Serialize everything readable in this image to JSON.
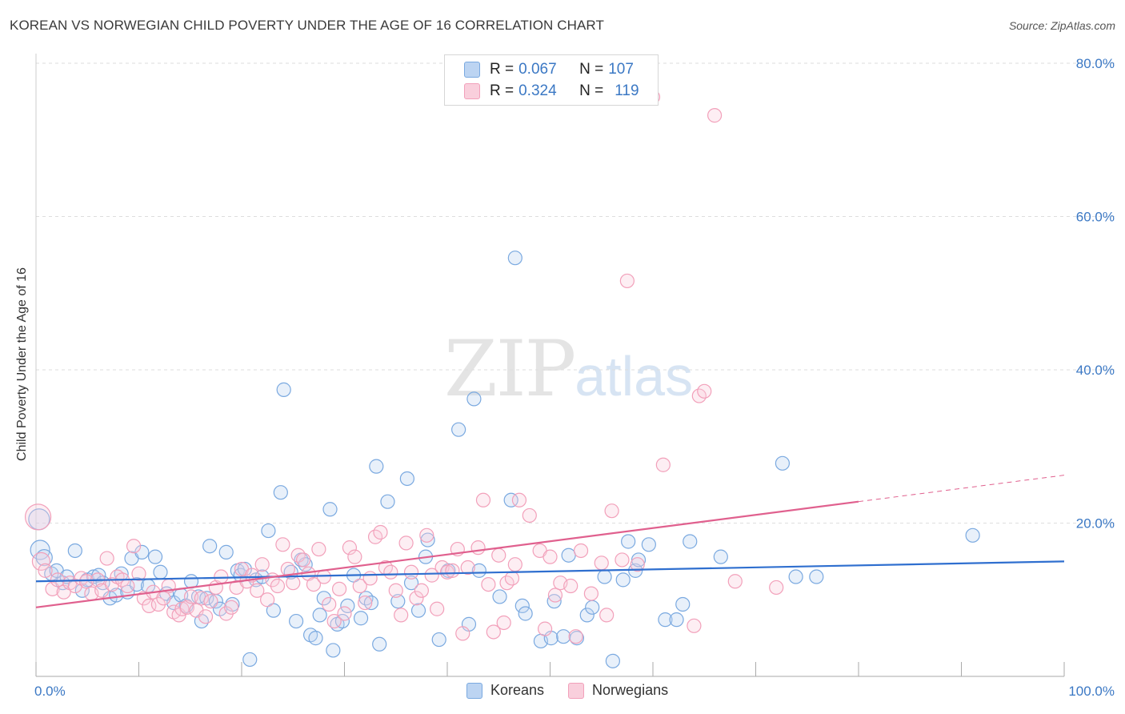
{
  "title": "KOREAN VS NORWEGIAN CHILD POVERTY UNDER THE AGE OF 16 CORRELATION CHART",
  "source": "Source: ZipAtlas.com",
  "watermark": {
    "zip": "ZIP",
    "atlas": "atlas"
  },
  "legend": {
    "r_label": "R = ",
    "n_label": "N = ",
    "koreans": {
      "r": "0.067",
      "n": "107"
    },
    "norwegians": {
      "r": "0.324",
      "n": "119"
    }
  },
  "bottom_legend": {
    "koreans": "Koreans",
    "norwegians": "Norwegians"
  },
  "chart_data": {
    "type": "scatter",
    "title": "KOREAN VS NORWEGIAN CHILD POVERTY UNDER THE AGE OF 16 CORRELATION CHART",
    "xlabel": "",
    "ylabel": "Child Poverty Under the Age of 16",
    "xlim": [
      0,
      100
    ],
    "ylim": [
      0,
      80
    ],
    "x_tick_labels": [
      "0.0%",
      "100.0%"
    ],
    "y_ticks": [
      20,
      40,
      60,
      80
    ],
    "y_tick_labels": [
      "20.0%",
      "40.0%",
      "60.0%",
      "80.0%"
    ],
    "grid": true,
    "colors": {
      "koreans": "#7aa9e0",
      "koreans_line": "#2f6fcf",
      "norwegians": "#f2a0ba",
      "norwegians_line": "#e0608e"
    },
    "series": [
      {
        "name": "Koreans",
        "trend": {
          "x": [
            0,
            100
          ],
          "y": [
            12.4,
            15.0
          ]
        },
        "points": [
          [
            0.3,
            20.5
          ],
          [
            0.4,
            16.5
          ],
          [
            0.8,
            15.5
          ],
          [
            1.5,
            13.4
          ],
          [
            2.0,
            13.8
          ],
          [
            2.6,
            12.2
          ],
          [
            3.0,
            13.0
          ],
          [
            3.8,
            16.4
          ],
          [
            4.5,
            11.2
          ],
          [
            5.0,
            12.6
          ],
          [
            5.6,
            13.0
          ],
          [
            6.1,
            13.2
          ],
          [
            6.5,
            12.2
          ],
          [
            7.2,
            10.2
          ],
          [
            7.8,
            10.6
          ],
          [
            8.3,
            13.4
          ],
          [
            8.9,
            11.0
          ],
          [
            9.3,
            15.4
          ],
          [
            9.8,
            12.0
          ],
          [
            10.3,
            16.2
          ],
          [
            10.9,
            11.8
          ],
          [
            11.6,
            15.6
          ],
          [
            12.1,
            13.6
          ],
          [
            12.7,
            10.8
          ],
          [
            13.4,
            9.6
          ],
          [
            14.1,
            10.6
          ],
          [
            14.6,
            9.2
          ],
          [
            15.1,
            12.4
          ],
          [
            15.8,
            10.4
          ],
          [
            16.1,
            7.2
          ],
          [
            16.6,
            10.2
          ],
          [
            16.9,
            17.0
          ],
          [
            17.5,
            9.8
          ],
          [
            17.9,
            8.8
          ],
          [
            18.5,
            16.2
          ],
          [
            19.1,
            9.4
          ],
          [
            19.6,
            13.8
          ],
          [
            19.9,
            13.2
          ],
          [
            20.3,
            14.0
          ],
          [
            20.8,
            2.2
          ],
          [
            21.4,
            12.6
          ],
          [
            22.0,
            13.0
          ],
          [
            22.6,
            19.0
          ],
          [
            23.1,
            8.6
          ],
          [
            23.8,
            24.0
          ],
          [
            24.1,
            37.4
          ],
          [
            24.8,
            13.6
          ],
          [
            25.3,
            7.2
          ],
          [
            25.8,
            15.2
          ],
          [
            26.2,
            14.6
          ],
          [
            26.7,
            5.4
          ],
          [
            27.2,
            5.0
          ],
          [
            27.6,
            8.0
          ],
          [
            28.0,
            10.2
          ],
          [
            28.6,
            21.8
          ],
          [
            28.9,
            3.4
          ],
          [
            29.3,
            6.8
          ],
          [
            29.8,
            7.2
          ],
          [
            30.3,
            9.2
          ],
          [
            30.9,
            13.2
          ],
          [
            31.6,
            7.6
          ],
          [
            32.1,
            10.2
          ],
          [
            32.6,
            9.6
          ],
          [
            33.1,
            27.4
          ],
          [
            33.4,
            4.2
          ],
          [
            34.2,
            22.8
          ],
          [
            35.2,
            9.8
          ],
          [
            36.1,
            25.8
          ],
          [
            36.5,
            12.2
          ],
          [
            37.2,
            8.6
          ],
          [
            38.1,
            17.8
          ],
          [
            37.9,
            15.6
          ],
          [
            39.2,
            4.8
          ],
          [
            40.1,
            13.8
          ],
          [
            41.1,
            32.2
          ],
          [
            42.1,
            6.8
          ],
          [
            42.6,
            36.2
          ],
          [
            43.1,
            13.8
          ],
          [
            45.1,
            10.4
          ],
          [
            46.2,
            23.0
          ],
          [
            46.6,
            54.6
          ],
          [
            47.3,
            9.2
          ],
          [
            47.6,
            8.2
          ],
          [
            49.1,
            4.6
          ],
          [
            50.1,
            5.0
          ],
          [
            50.4,
            9.8
          ],
          [
            51.3,
            5.2
          ],
          [
            51.8,
            15.8
          ],
          [
            52.6,
            5.0
          ],
          [
            53.6,
            8.0
          ],
          [
            54.1,
            9.0
          ],
          [
            55.3,
            13.0
          ],
          [
            56.1,
            2.0
          ],
          [
            57.1,
            12.6
          ],
          [
            57.6,
            17.6
          ],
          [
            58.3,
            13.8
          ],
          [
            58.6,
            15.2
          ],
          [
            59.6,
            17.2
          ],
          [
            61.2,
            7.4
          ],
          [
            62.3,
            7.4
          ],
          [
            62.9,
            9.4
          ],
          [
            63.6,
            17.6
          ],
          [
            66.6,
            15.6
          ],
          [
            72.6,
            27.8
          ],
          [
            73.9,
            13.0
          ],
          [
            75.9,
            13.0
          ],
          [
            91.1,
            18.4
          ]
        ]
      },
      {
        "name": "Norwegians",
        "trend": {
          "x": [
            0,
            80
          ],
          "y": [
            9.0,
            22.8
          ]
        },
        "points": [
          [
            0.2,
            20.8
          ],
          [
            0.5,
            15.0
          ],
          [
            0.9,
            13.8
          ],
          [
            1.6,
            11.4
          ],
          [
            2.1,
            12.6
          ],
          [
            2.7,
            11.0
          ],
          [
            3.3,
            12.2
          ],
          [
            3.8,
            11.8
          ],
          [
            4.4,
            12.8
          ],
          [
            4.9,
            12.4
          ],
          [
            5.4,
            10.8
          ],
          [
            6.0,
            12.6
          ],
          [
            6.4,
            11.2
          ],
          [
            6.9,
            15.4
          ],
          [
            7.4,
            12.0
          ],
          [
            7.9,
            13.0
          ],
          [
            8.4,
            12.6
          ],
          [
            8.9,
            11.8
          ],
          [
            9.5,
            17.0
          ],
          [
            10.0,
            13.4
          ],
          [
            10.5,
            10.2
          ],
          [
            11.0,
            9.2
          ],
          [
            11.4,
            11.0
          ],
          [
            11.9,
            9.4
          ],
          [
            12.4,
            10.2
          ],
          [
            12.9,
            11.8
          ],
          [
            13.4,
            8.4
          ],
          [
            13.9,
            8.0
          ],
          [
            14.2,
            8.8
          ],
          [
            14.7,
            9.0
          ],
          [
            15.1,
            10.4
          ],
          [
            15.6,
            8.6
          ],
          [
            16.1,
            10.2
          ],
          [
            16.5,
            7.8
          ],
          [
            17.0,
            9.8
          ],
          [
            17.5,
            11.6
          ],
          [
            18.0,
            13.0
          ],
          [
            18.5,
            8.2
          ],
          [
            19.0,
            9.0
          ],
          [
            19.5,
            11.6
          ],
          [
            20.0,
            14.0
          ],
          [
            20.5,
            12.4
          ],
          [
            21.0,
            13.2
          ],
          [
            21.5,
            11.2
          ],
          [
            22.0,
            14.6
          ],
          [
            22.5,
            10.0
          ],
          [
            23.0,
            12.6
          ],
          [
            23.5,
            11.8
          ],
          [
            24.0,
            17.2
          ],
          [
            24.5,
            14.0
          ],
          [
            25.0,
            12.2
          ],
          [
            25.5,
            15.8
          ],
          [
            26.0,
            15.2
          ],
          [
            26.5,
            13.4
          ],
          [
            27.0,
            12.0
          ],
          [
            27.5,
            16.6
          ],
          [
            28.0,
            13.0
          ],
          [
            28.5,
            9.4
          ],
          [
            29.0,
            7.2
          ],
          [
            29.5,
            11.4
          ],
          [
            30.0,
            8.2
          ],
          [
            30.5,
            16.8
          ],
          [
            31.0,
            15.6
          ],
          [
            31.5,
            11.8
          ],
          [
            32.0,
            9.6
          ],
          [
            32.5,
            12.8
          ],
          [
            33.0,
            18.2
          ],
          [
            33.5,
            18.8
          ],
          [
            34.0,
            14.2
          ],
          [
            34.5,
            13.6
          ],
          [
            35.0,
            11.2
          ],
          [
            35.5,
            8.0
          ],
          [
            36.0,
            17.4
          ],
          [
            36.5,
            13.6
          ],
          [
            37.0,
            10.2
          ],
          [
            37.5,
            11.2
          ],
          [
            38.0,
            18.4
          ],
          [
            38.5,
            13.2
          ],
          [
            39.0,
            8.8
          ],
          [
            39.5,
            14.2
          ],
          [
            40.0,
            13.6
          ],
          [
            40.5,
            13.8
          ],
          [
            41.0,
            16.6
          ],
          [
            41.5,
            5.6
          ],
          [
            42.0,
            14.2
          ],
          [
            43.0,
            16.8
          ],
          [
            43.5,
            23.0
          ],
          [
            44.0,
            12.0
          ],
          [
            44.5,
            5.8
          ],
          [
            45.0,
            15.8
          ],
          [
            45.5,
            7.0
          ],
          [
            45.8,
            12.2
          ],
          [
            46.3,
            12.8
          ],
          [
            46.6,
            14.6
          ],
          [
            47.0,
            23.0
          ],
          [
            48.0,
            21.0
          ],
          [
            49.0,
            16.4
          ],
          [
            49.5,
            6.2
          ],
          [
            50.0,
            15.6
          ],
          [
            50.5,
            10.6
          ],
          [
            51.0,
            12.2
          ],
          [
            52.0,
            11.8
          ],
          [
            52.5,
            5.2
          ],
          [
            53.0,
            16.4
          ],
          [
            54.0,
            10.8
          ],
          [
            55.0,
            14.8
          ],
          [
            55.5,
            8.0
          ],
          [
            56.0,
            21.6
          ],
          [
            57.0,
            15.2
          ],
          [
            57.5,
            51.6
          ],
          [
            58.5,
            14.6
          ],
          [
            60.0,
            75.6
          ],
          [
            61.0,
            27.6
          ],
          [
            64.0,
            6.6
          ],
          [
            64.5,
            36.6
          ],
          [
            65.0,
            37.2
          ],
          [
            66.0,
            73.2
          ],
          [
            68.0,
            12.4
          ],
          [
            72.0,
            11.6
          ]
        ]
      }
    ]
  }
}
